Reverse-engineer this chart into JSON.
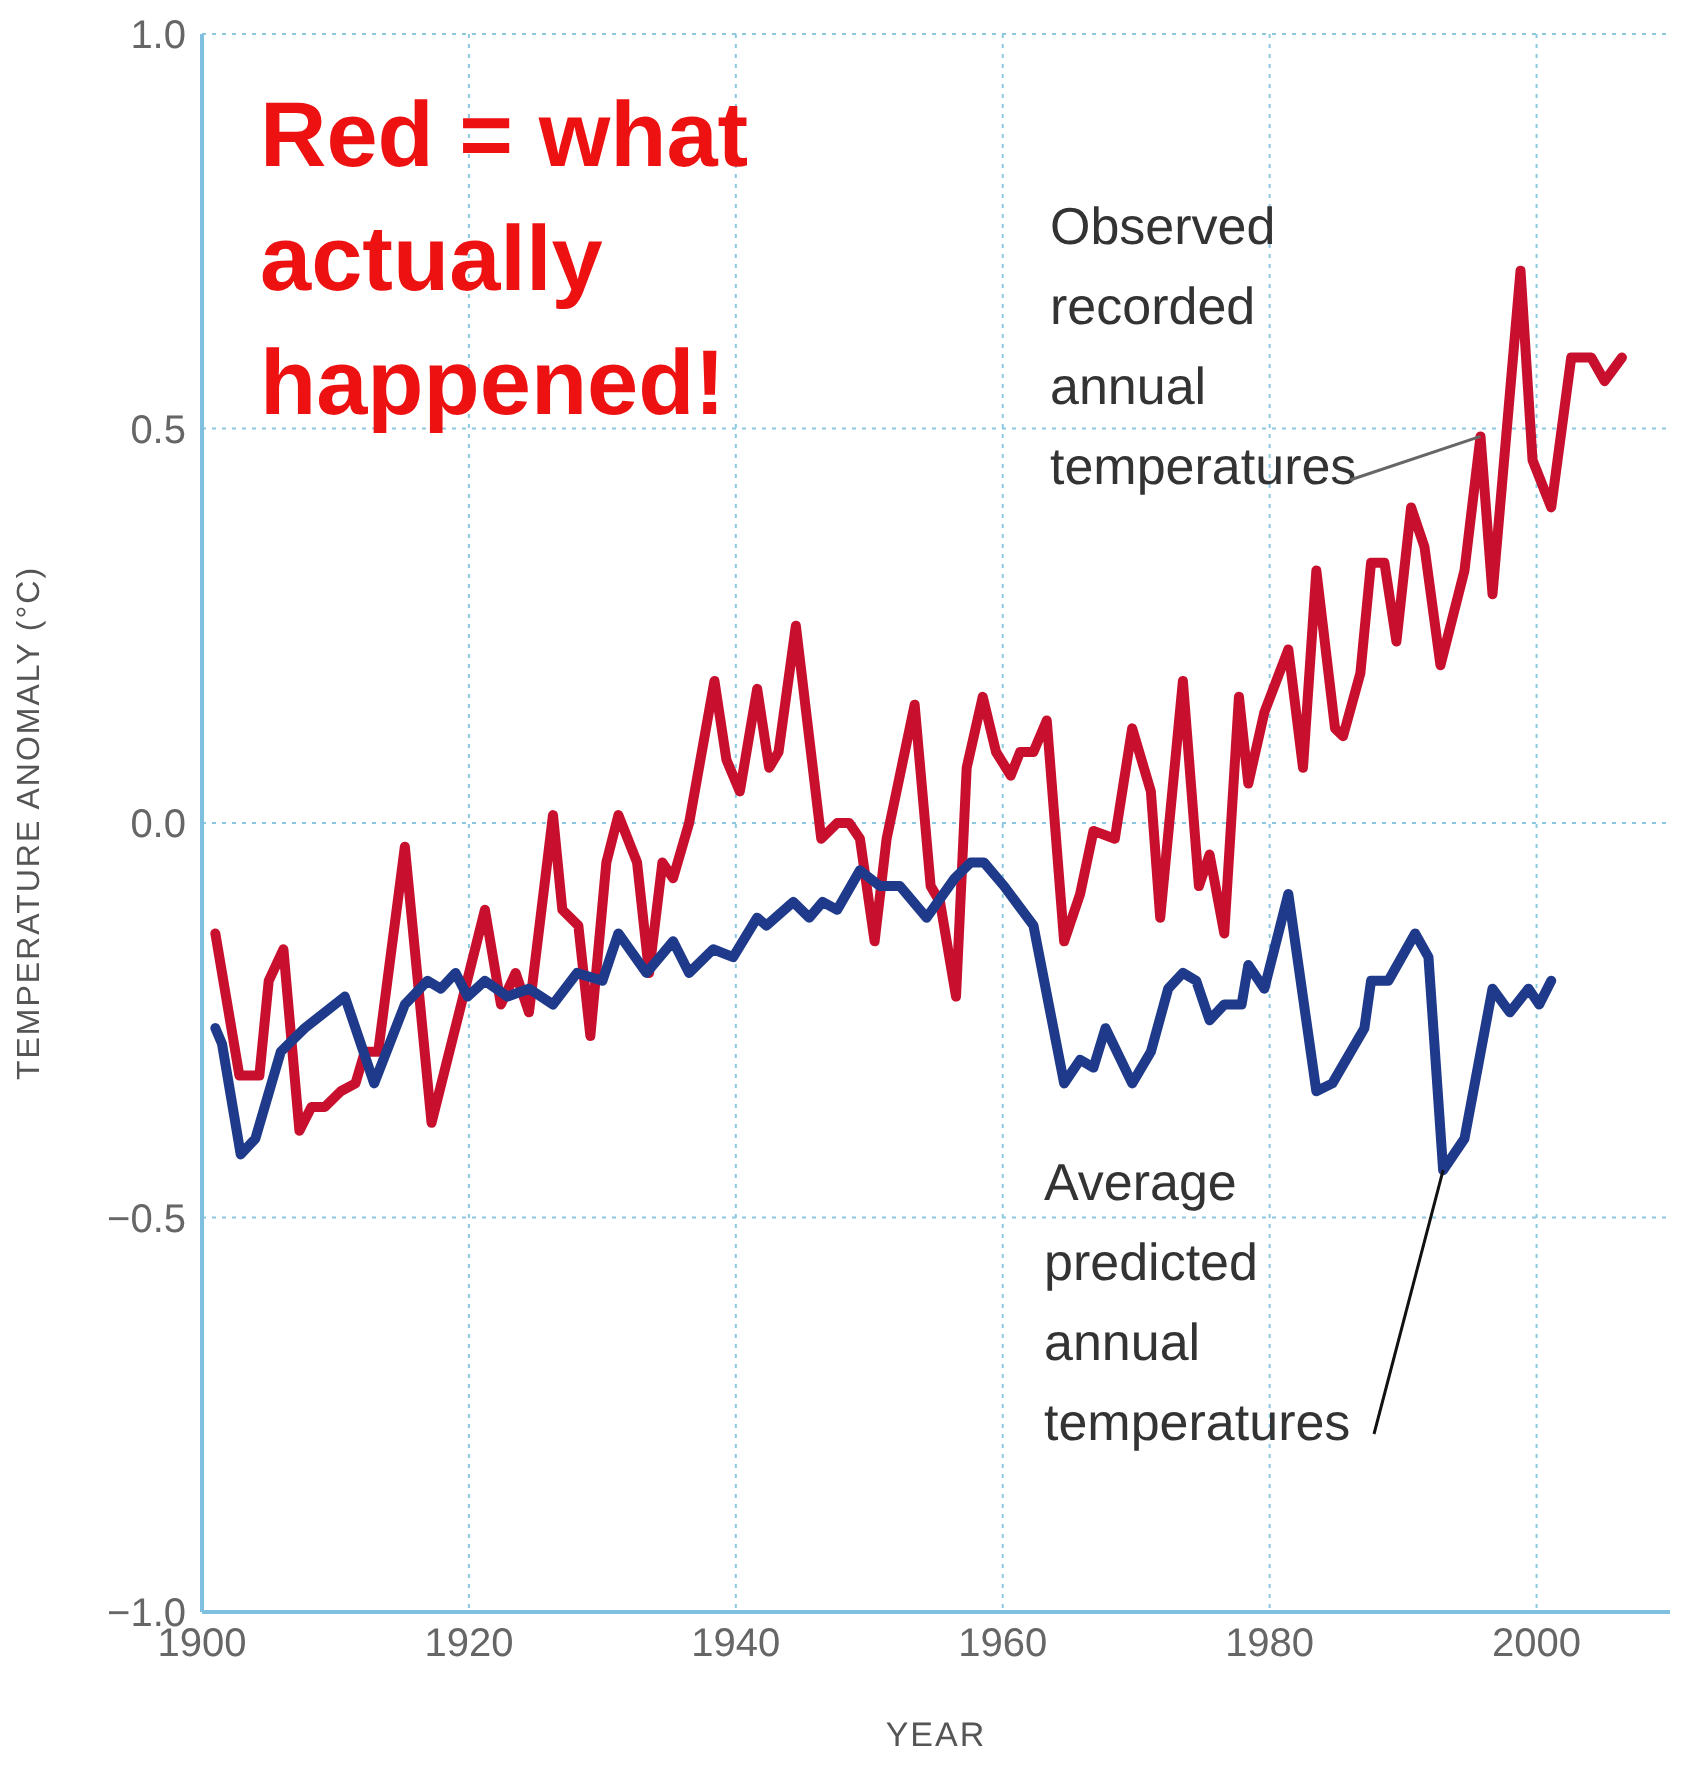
{
  "chart_data": {
    "type": "line",
    "xlabel": "YEAR",
    "ylabel": "TEMPERATURE ANOMALY (°C)",
    "annotations": [
      "Red = what actually happened!"
    ],
    "xlim": [
      1900,
      2010
    ],
    "xticks": [
      1900,
      1920,
      1940,
      1960,
      1980,
      2000
    ],
    "ylim": [
      -1.0,
      1.0
    ],
    "yticks": [
      {
        "value": -1.0,
        "label": "−1.0"
      },
      {
        "value": -0.5,
        "label": "−0.5"
      },
      {
        "value": 0,
        "label": "0.0"
      },
      {
        "value": 0.5,
        "label": "0.5"
      },
      {
        "value": 1.0,
        "label": "1.0"
      }
    ],
    "grid": true,
    "legend": false,
    "marker": "none",
    "line_style": "solid",
    "series": [
      {
        "name": "Observed recorded annual temperatures",
        "color": "#c8102e",
        "x": [
          1901.0,
          1902.8,
          1904.3,
          1905.0,
          1906.1,
          1907.3,
          1908.2,
          1909.2,
          1910.4,
          1911.5,
          1912.2,
          1913.2,
          1915.2,
          1917.2,
          1921.2,
          1922.4,
          1923.5,
          1924.5,
          1926.3,
          1927.0,
          1928.2,
          1929.1,
          1930.3,
          1931.2,
          1932.6,
          1933.5,
          1934.5,
          1935.3,
          1936.5,
          1938.4,
          1939.3,
          1940.3,
          1941.6,
          1942.5,
          1943.2,
          1944.5,
          1946.4,
          1947.6,
          1948.5,
          1949.3,
          1950.4,
          1951.3,
          1953.4,
          1954.6,
          1955.3,
          1956.5,
          1957.3,
          1958.5,
          1959.5,
          1960.6,
          1961.3,
          1962.3,
          1963.3,
          1964.6,
          1965.8,
          1966.8,
          1968.4,
          1969.7,
          1971.1,
          1971.8,
          1973.5,
          1974.7,
          1975.5,
          1976.6,
          1977.7,
          1978.4,
          1979.6,
          1981.4,
          1982.5,
          1983.5,
          1984.9,
          1985.5,
          1986.8,
          1987.6,
          1988.6,
          1989.5,
          1990.6,
          1991.6,
          1992.8,
          1994.6,
          1995.8,
          1996.7,
          1998.8,
          1999.7,
          2001.1,
          2002.6,
          2004.1,
          2005.1,
          2006.4
        ],
        "values": [
          -0.14,
          -0.32,
          -0.32,
          -0.2,
          -0.16,
          -0.39,
          -0.36,
          -0.36,
          -0.34,
          -0.33,
          -0.29,
          -0.29,
          -0.03,
          -0.38,
          -0.11,
          -0.23,
          -0.19,
          -0.24,
          0.01,
          -0.11,
          -0.13,
          -0.27,
          -0.05,
          0.01,
          -0.05,
          -0.19,
          -0.05,
          -0.07,
          0.0,
          0.18,
          0.08,
          0.04,
          0.17,
          0.07,
          0.09,
          0.25,
          -0.02,
          0.0,
          0.0,
          -0.02,
          -0.15,
          -0.02,
          0.15,
          -0.08,
          -0.1,
          -0.22,
          0.07,
          0.16,
          0.09,
          0.06,
          0.09,
          0.09,
          0.13,
          -0.15,
          -0.09,
          -0.01,
          -0.02,
          0.12,
          0.04,
          -0.12,
          0.18,
          -0.08,
          -0.04,
          -0.14,
          0.16,
          0.05,
          0.14,
          0.22,
          0.07,
          0.32,
          0.12,
          0.11,
          0.19,
          0.33,
          0.33,
          0.23,
          0.4,
          0.35,
          0.2,
          0.32,
          0.49,
          0.29,
          0.7,
          0.46,
          0.4,
          0.59,
          0.59,
          0.56,
          0.59
        ]
      },
      {
        "name": "Average predicted annual temperatures",
        "color": "#1f3a8a",
        "x": [
          1901.0,
          1901.5,
          1902.9,
          1904.0,
          1905.9,
          1907.7,
          1910.7,
          1912.9,
          1915.2,
          1916.9,
          1917.9,
          1919.0,
          1919.9,
          1921.2,
          1922.9,
          1924.5,
          1926.3,
          1928.1,
          1930.0,
          1931.2,
          1933.3,
          1935.3,
          1936.5,
          1938.3,
          1939.8,
          1941.6,
          1942.3,
          1944.3,
          1945.5,
          1946.5,
          1947.6,
          1949.3,
          1950.8,
          1952.3,
          1954.3,
          1956.4,
          1957.6,
          1958.6,
          1960.1,
          1962.3,
          1964.6,
          1965.8,
          1966.8,
          1967.7,
          1969.7,
          1971.1,
          1972.4,
          1973.5,
          1974.5,
          1975.5,
          1976.6,
          1977.9,
          1978.4,
          1979.6,
          1981.4,
          1983.5,
          1984.7,
          1987.1,
          1987.6,
          1988.9,
          1990.9,
          1991.9,
          1993.0,
          1994.6,
          1996.7,
          1998.0,
          1999.4,
          2000.2,
          2001.1
        ],
        "values": [
          -0.26,
          -0.28,
          -0.42,
          -0.4,
          -0.29,
          -0.26,
          -0.22,
          -0.33,
          -0.23,
          -0.2,
          -0.21,
          -0.19,
          -0.22,
          -0.2,
          -0.22,
          -0.21,
          -0.23,
          -0.19,
          -0.2,
          -0.14,
          -0.19,
          -0.15,
          -0.19,
          -0.16,
          -0.17,
          -0.12,
          -0.13,
          -0.1,
          -0.12,
          -0.1,
          -0.11,
          -0.06,
          -0.08,
          -0.08,
          -0.12,
          -0.07,
          -0.05,
          -0.05,
          -0.08,
          -0.13,
          -0.33,
          -0.3,
          -0.31,
          -0.26,
          -0.33,
          -0.29,
          -0.21,
          -0.19,
          -0.2,
          -0.25,
          -0.23,
          -0.23,
          -0.18,
          -0.21,
          -0.09,
          -0.34,
          -0.33,
          -0.26,
          -0.2,
          -0.2,
          -0.14,
          -0.17,
          -0.44,
          -0.4,
          -0.21,
          -0.24,
          -0.21,
          -0.23,
          -0.2
        ]
      }
    ]
  }
}
